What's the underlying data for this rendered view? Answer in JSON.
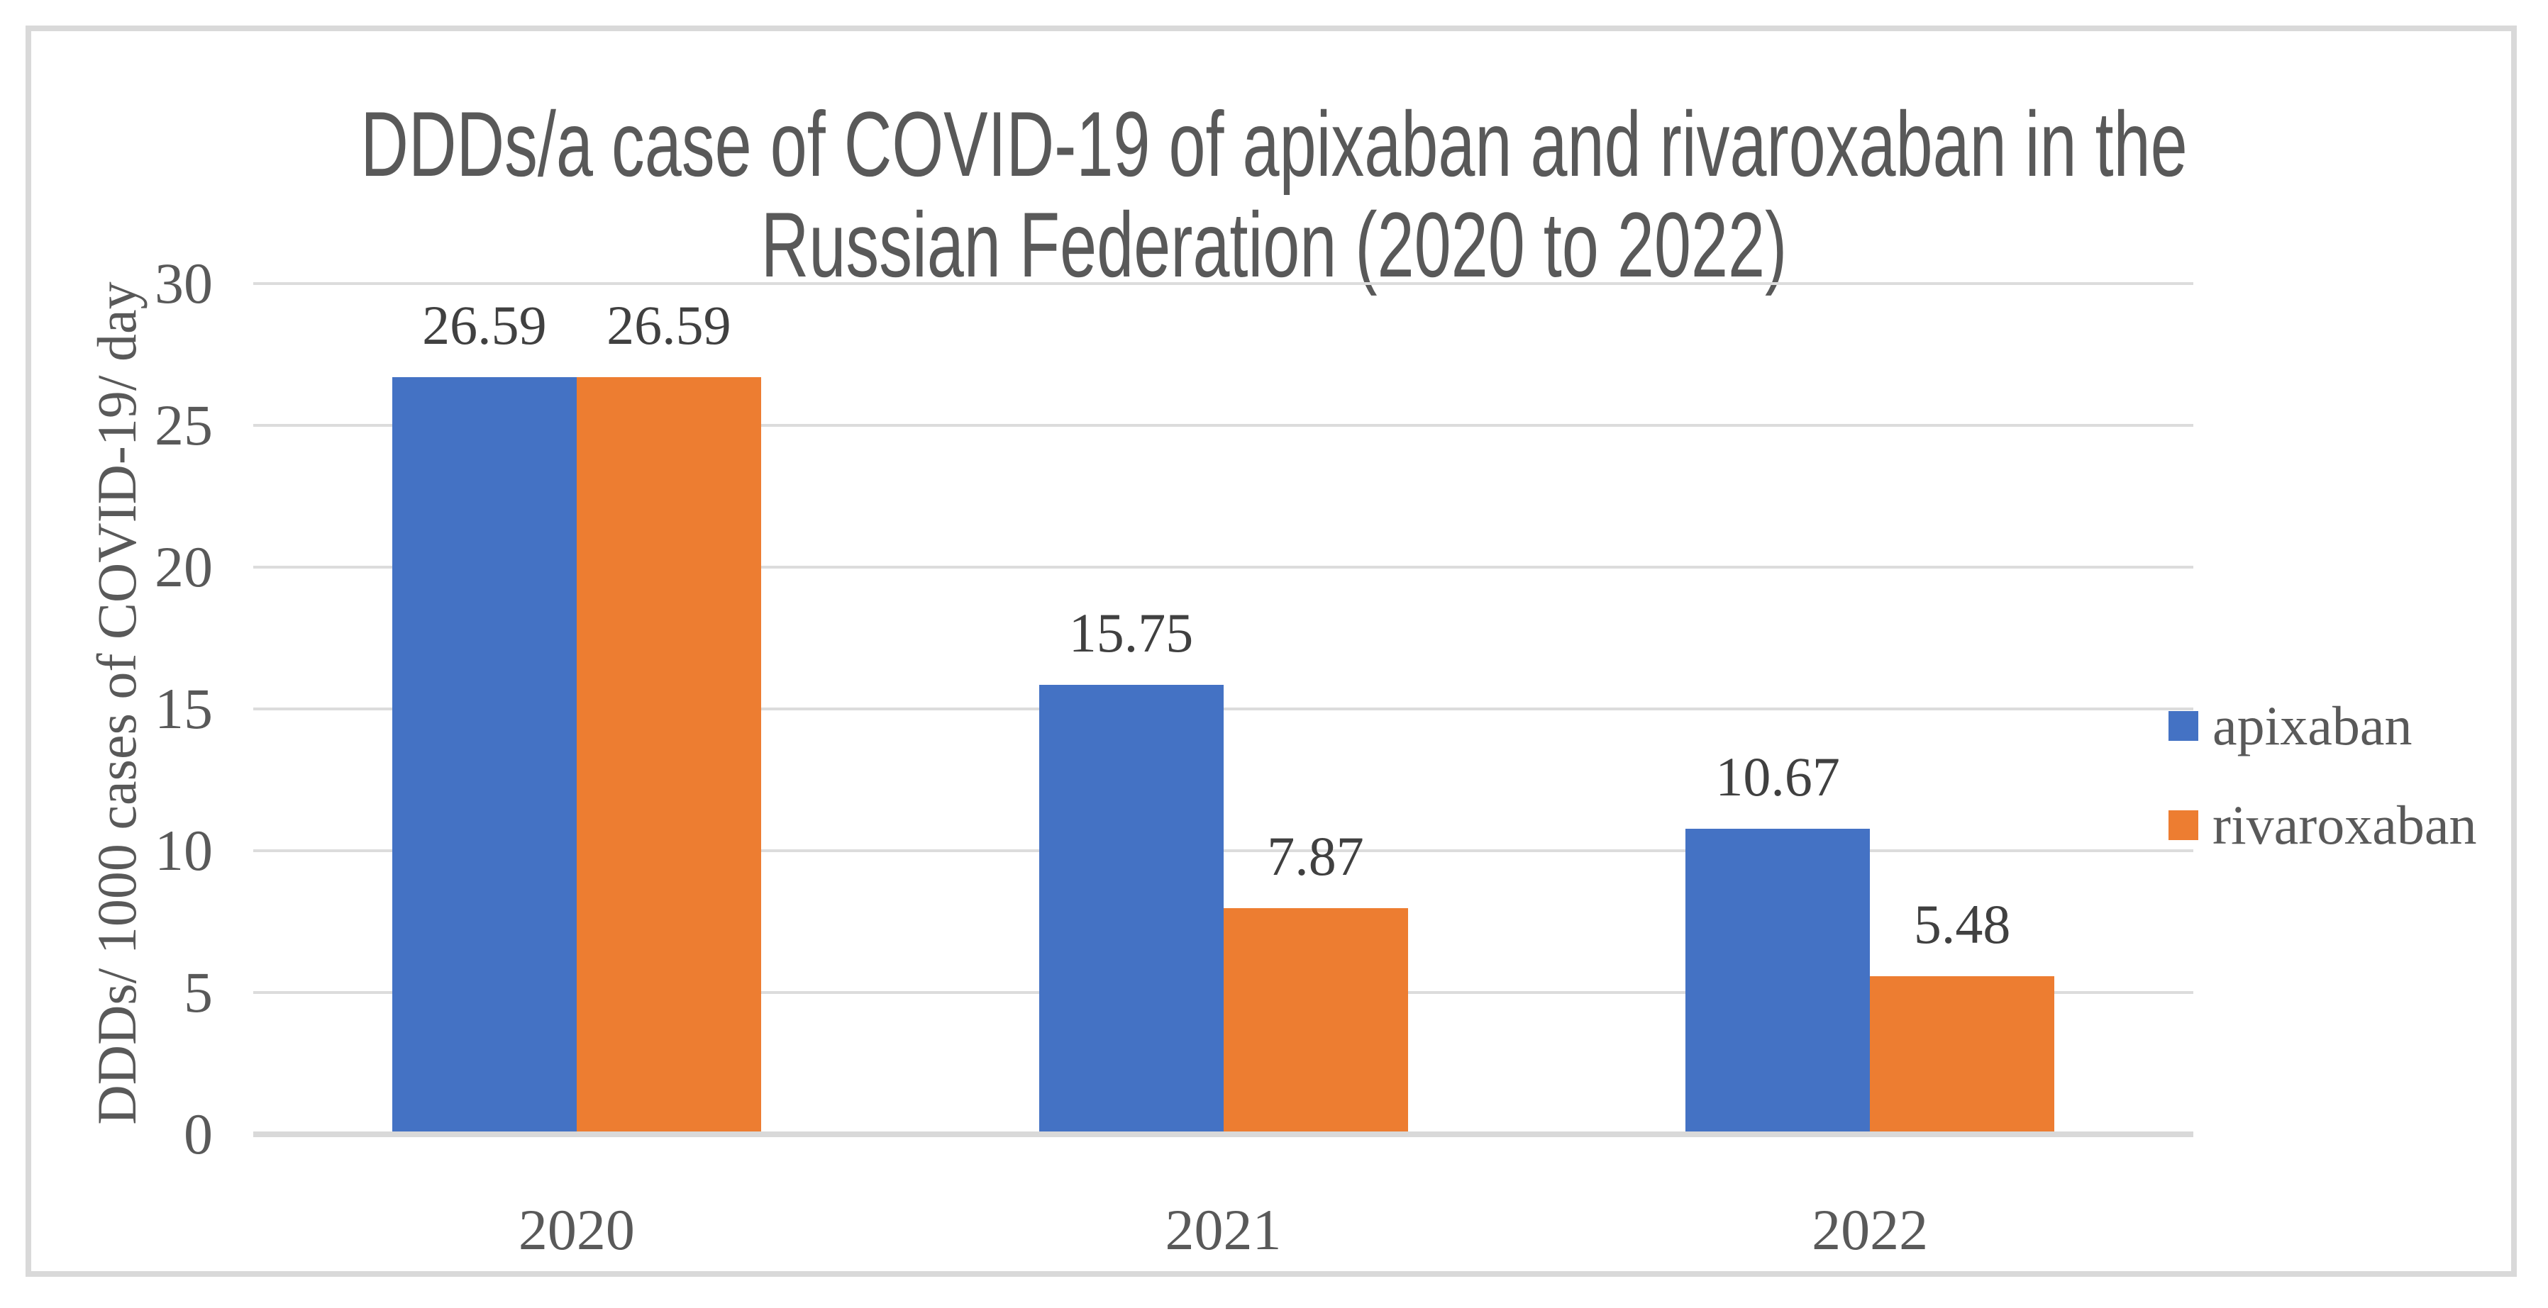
{
  "figure": {
    "background": "#FFFFFF",
    "border_color": "#D9D9D9"
  },
  "chart_data": {
    "type": "bar",
    "title": "DDDs/a case of COVID-19 of apixaban and rivaroxaban in the Russian Federation (2020 to 2022)",
    "title_lines": [
      "DDDs/a case of COVID-19 of apixaban and rivaroxaban in the",
      "Russian Federation (2020 to 2022)"
    ],
    "xlabel": "",
    "ylabel": "DDDs/ 1000 cases of COVID-19/ day",
    "categories": [
      "2020",
      "2021",
      "2022"
    ],
    "series": [
      {
        "name": "apixaban",
        "color": "#4472C4",
        "values": [
          26.59,
          15.75,
          10.67
        ],
        "value_labels": [
          "26.59",
          "15.75",
          "10.67"
        ]
      },
      {
        "name": "rivaroxaban",
        "color": "#ED7D31",
        "values": [
          26.59,
          7.87,
          5.48
        ],
        "value_labels": [
          "26.59",
          "7.87",
          "5.48"
        ]
      }
    ],
    "ylim": [
      0,
      30
    ],
    "yticks": [
      0,
      5,
      10,
      15,
      20,
      25,
      30
    ],
    "grid": true,
    "legend_position": "right",
    "colors": {
      "title_text": "#595959",
      "axis_text": "#595959",
      "data_label_text": "#404040",
      "gridline": "#D9D9D9"
    }
  }
}
